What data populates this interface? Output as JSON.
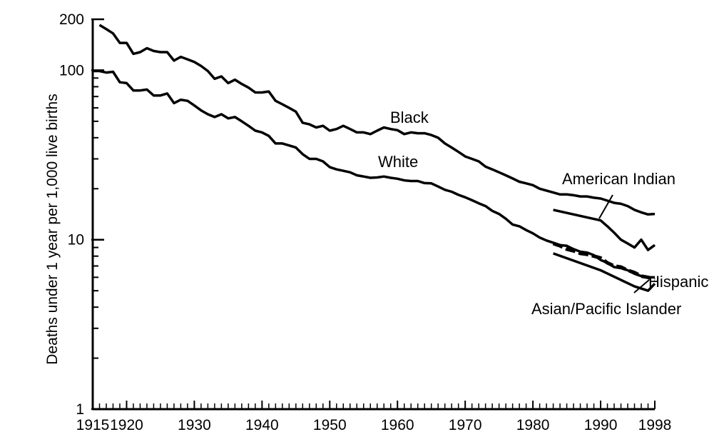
{
  "chart_data": {
    "type": "line",
    "title": "",
    "xlabel": "",
    "ylabel": "Deaths under 1 year per 1,000 live births",
    "y_scale": "log",
    "xlim": [
      1915,
      1998
    ],
    "ylim": [
      1,
      200
    ],
    "grid": false,
    "legend": "none (series labeled directly on chart)",
    "x_ticks": [
      {
        "value": 1915,
        "label": "1915"
      },
      {
        "value": 1920,
        "label": "1920"
      },
      {
        "value": 1930,
        "label": "1930"
      },
      {
        "value": 1940,
        "label": "1940"
      },
      {
        "value": 1950,
        "label": "1950"
      },
      {
        "value": 1960,
        "label": "1960"
      },
      {
        "value": 1970,
        "label": "1970"
      },
      {
        "value": 1980,
        "label": "1980"
      },
      {
        "value": 1990,
        "label": "1990"
      },
      {
        "value": 1998,
        "label": "1998"
      }
    ],
    "y_ticks": [
      {
        "value": 1,
        "label": "1"
      },
      {
        "value": 10,
        "label": "10"
      },
      {
        "value": 100,
        "label": "100"
      },
      {
        "value": 200,
        "label": "200"
      }
    ],
    "series": [
      {
        "name": "Black",
        "color": "#000000",
        "dash": "solid",
        "points": [
          [
            1916,
            185
          ],
          [
            1917,
            175
          ],
          [
            1918,
            165
          ],
          [
            1919,
            145
          ],
          [
            1920,
            145
          ],
          [
            1921,
            125
          ],
          [
            1922,
            128
          ],
          [
            1923,
            135
          ],
          [
            1924,
            130
          ],
          [
            1925,
            128
          ],
          [
            1926,
            128
          ],
          [
            1927,
            114
          ],
          [
            1928,
            120
          ],
          [
            1929,
            116
          ],
          [
            1930,
            112
          ],
          [
            1931,
            106
          ],
          [
            1932,
            99
          ],
          [
            1933,
            89
          ],
          [
            1934,
            92
          ],
          [
            1935,
            84
          ],
          [
            1936,
            88
          ],
          [
            1937,
            83
          ],
          [
            1938,
            79
          ],
          [
            1939,
            74
          ],
          [
            1940,
            74
          ],
          [
            1941,
            75
          ],
          [
            1942,
            66
          ],
          [
            1943,
            63
          ],
          [
            1944,
            60
          ],
          [
            1945,
            57
          ],
          [
            1946,
            49
          ],
          [
            1947,
            48
          ],
          [
            1948,
            46
          ],
          [
            1949,
            47
          ],
          [
            1950,
            44
          ],
          [
            1951,
            45
          ],
          [
            1952,
            47
          ],
          [
            1953,
            45
          ],
          [
            1954,
            43
          ],
          [
            1955,
            43
          ],
          [
            1956,
            42
          ],
          [
            1957,
            44
          ],
          [
            1958,
            46
          ],
          [
            1959,
            45
          ],
          [
            1960,
            44.3
          ],
          [
            1961,
            42
          ],
          [
            1962,
            43
          ],
          [
            1963,
            42.5
          ],
          [
            1964,
            42.5
          ],
          [
            1965,
            41.5
          ],
          [
            1966,
            40
          ],
          [
            1967,
            37
          ],
          [
            1968,
            35
          ],
          [
            1969,
            33
          ],
          [
            1970,
            31
          ],
          [
            1971,
            30
          ],
          [
            1972,
            29
          ],
          [
            1973,
            27
          ],
          [
            1974,
            26
          ],
          [
            1975,
            25
          ],
          [
            1976,
            24
          ],
          [
            1977,
            23
          ],
          [
            1978,
            22
          ],
          [
            1979,
            21.5
          ],
          [
            1980,
            21
          ],
          [
            1981,
            20
          ],
          [
            1982,
            19.5
          ],
          [
            1983,
            19
          ],
          [
            1984,
            18.5
          ],
          [
            1985,
            18.5
          ],
          [
            1986,
            18.3
          ],
          [
            1987,
            18
          ],
          [
            1988,
            18
          ],
          [
            1989,
            17.7
          ],
          [
            1990,
            17.5
          ],
          [
            1991,
            17
          ],
          [
            1992,
            16.5
          ],
          [
            1993,
            16.3
          ],
          [
            1994,
            15.8
          ],
          [
            1995,
            15
          ],
          [
            1996,
            14.5
          ],
          [
            1997,
            14.1
          ],
          [
            1998,
            14.2
          ]
        ]
      },
      {
        "name": "White",
        "color": "#000000",
        "dash": "solid",
        "points": [
          [
            1915,
            99
          ],
          [
            1916,
            99
          ],
          [
            1917,
            97
          ],
          [
            1918,
            98
          ],
          [
            1919,
            85
          ],
          [
            1920,
            84
          ],
          [
            1921,
            76
          ],
          [
            1922,
            76
          ],
          [
            1923,
            77
          ],
          [
            1924,
            71
          ],
          [
            1925,
            71
          ],
          [
            1926,
            73
          ],
          [
            1927,
            64
          ],
          [
            1928,
            67
          ],
          [
            1929,
            66
          ],
          [
            1930,
            62
          ],
          [
            1931,
            58
          ],
          [
            1932,
            55
          ],
          [
            1933,
            53
          ],
          [
            1934,
            55
          ],
          [
            1935,
            52
          ],
          [
            1936,
            53
          ],
          [
            1937,
            50
          ],
          [
            1938,
            47
          ],
          [
            1939,
            44
          ],
          [
            1940,
            43
          ],
          [
            1941,
            41
          ],
          [
            1942,
            37
          ],
          [
            1943,
            37
          ],
          [
            1944,
            36
          ],
          [
            1945,
            35
          ],
          [
            1946,
            32
          ],
          [
            1947,
            30
          ],
          [
            1948,
            30
          ],
          [
            1949,
            29
          ],
          [
            1950,
            26.8
          ],
          [
            1951,
            26
          ],
          [
            1952,
            25.5
          ],
          [
            1953,
            25
          ],
          [
            1954,
            24
          ],
          [
            1955,
            23.6
          ],
          [
            1956,
            23.2
          ],
          [
            1957,
            23.3
          ],
          [
            1958,
            23.6
          ],
          [
            1959,
            23.2
          ],
          [
            1960,
            22.9
          ],
          [
            1961,
            22.4
          ],
          [
            1962,
            22.2
          ],
          [
            1963,
            22.2
          ],
          [
            1964,
            21.6
          ],
          [
            1965,
            21.5
          ],
          [
            1966,
            20.6
          ],
          [
            1967,
            19.7
          ],
          [
            1968,
            19.2
          ],
          [
            1969,
            18.4
          ],
          [
            1970,
            17.8
          ],
          [
            1971,
            17.1
          ],
          [
            1972,
            16.4
          ],
          [
            1973,
            15.8
          ],
          [
            1974,
            14.8
          ],
          [
            1975,
            14.2
          ],
          [
            1976,
            13.3
          ],
          [
            1977,
            12.3
          ],
          [
            1978,
            12
          ],
          [
            1979,
            11.4
          ],
          [
            1980,
            10.9
          ],
          [
            1981,
            10.3
          ],
          [
            1982,
            9.9
          ],
          [
            1983,
            9.6
          ],
          [
            1984,
            9.3
          ],
          [
            1985,
            9.2
          ],
          [
            1986,
            8.8
          ],
          [
            1987,
            8.5
          ],
          [
            1988,
            8.4
          ],
          [
            1989,
            8.1
          ],
          [
            1990,
            7.6
          ],
          [
            1991,
            7.3
          ],
          [
            1992,
            6.9
          ],
          [
            1993,
            6.8
          ],
          [
            1994,
            6.6
          ],
          [
            1995,
            6.3
          ],
          [
            1996,
            6.1
          ],
          [
            1997,
            6
          ],
          [
            1998,
            6
          ]
        ]
      },
      {
        "name": "American Indian",
        "color": "#000000",
        "dash": "solid",
        "points": [
          [
            1983,
            15
          ],
          [
            1990,
            13
          ],
          [
            1991,
            12
          ],
          [
            1992,
            11
          ],
          [
            1993,
            10
          ],
          [
            1994,
            9.5
          ],
          [
            1995,
            9
          ],
          [
            1996,
            10
          ],
          [
            1997,
            8.7
          ],
          [
            1998,
            9.3
          ]
        ]
      },
      {
        "name": "Hispanic",
        "color": "#000000",
        "dash": "dashed",
        "points": [
          [
            1983,
            9.5
          ],
          [
            1984,
            9.2
          ],
          [
            1985,
            8.8
          ],
          [
            1986,
            8.6
          ],
          [
            1987,
            8.3
          ],
          [
            1988,
            8.2
          ],
          [
            1989,
            8
          ],
          [
            1990,
            7.8
          ],
          [
            1991,
            7.3
          ],
          [
            1992,
            7
          ],
          [
            1993,
            6.9
          ],
          [
            1994,
            6.6
          ],
          [
            1995,
            6.4
          ],
          [
            1996,
            6.1
          ],
          [
            1997,
            6
          ],
          [
            1998,
            5.8
          ]
        ]
      },
      {
        "name": "Asian/Pacific Islander",
        "color": "#000000",
        "dash": "solid",
        "points": [
          [
            1983,
            8.3
          ],
          [
            1990,
            6.6
          ],
          [
            1995,
            5.3
          ],
          [
            1997,
            5
          ],
          [
            1998,
            5.5
          ]
        ]
      }
    ]
  }
}
